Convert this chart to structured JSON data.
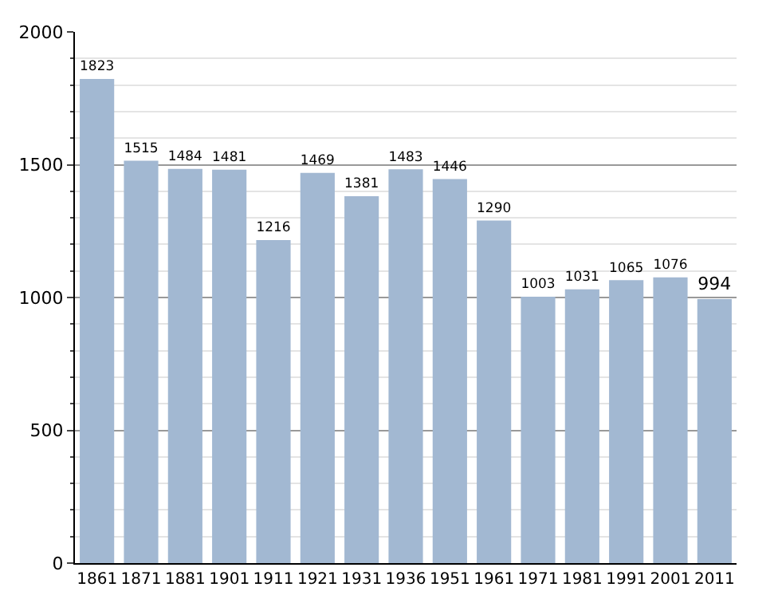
{
  "chart_data": {
    "type": "bar",
    "categories": [
      "1861",
      "1871",
      "1881",
      "1901",
      "1911",
      "1921",
      "1931",
      "1936",
      "1951",
      "1961",
      "1971",
      "1981",
      "1991",
      "2001",
      "2011"
    ],
    "values": [
      1823,
      1515,
      1484,
      1481,
      1216,
      1469,
      1381,
      1483,
      1446,
      1290,
      1003,
      1031,
      1065,
      1076,
      994
    ],
    "color": "#a2b8d2",
    "ylim": [
      0,
      2000
    ],
    "yticks": [
      0,
      500,
      1000,
      1500,
      2000
    ],
    "grid": "y",
    "data_labels": true
  }
}
